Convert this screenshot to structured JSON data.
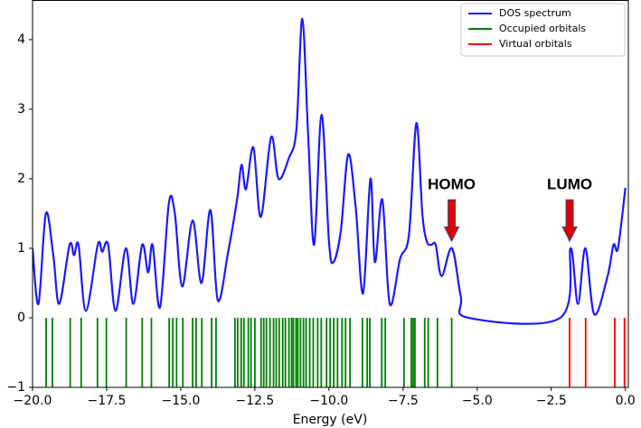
{
  "chart_data": {
    "type": "line",
    "x_label": "Energy (eV)",
    "xlim": [
      -20,
      0.1
    ],
    "ylim": [
      -1,
      4.57
    ],
    "xticks": [
      {
        "value": -20,
        "label": "−20.0"
      },
      {
        "value": -17.5,
        "label": "−17.5"
      },
      {
        "value": -15,
        "label": "−15.0"
      },
      {
        "value": -12.5,
        "label": "−12.5"
      },
      {
        "value": -10,
        "label": "−10.0"
      },
      {
        "value": -7.5,
        "label": "−7.5"
      },
      {
        "value": -5,
        "label": "−5.0"
      },
      {
        "value": -2.5,
        "label": "−2.5"
      },
      {
        "value": 0,
        "label": "0.0"
      }
    ],
    "yticks": [
      {
        "value": -1,
        "label": "−1"
      },
      0,
      1,
      2,
      3,
      4
    ],
    "legend": "upper right",
    "series": [
      {
        "name": "DOS spectrum",
        "color": "#1a1aff",
        "x": [
          -20.0,
          -19.8,
          -19.55,
          -19.3,
          -19.1,
          -18.75,
          -18.6,
          -18.45,
          -18.2,
          -17.8,
          -17.65,
          -17.45,
          -17.2,
          -16.85,
          -16.6,
          -16.3,
          -16.1,
          -15.95,
          -15.7,
          -15.4,
          -15.2,
          -14.95,
          -14.6,
          -14.3,
          -14.0,
          -13.75,
          -13.4,
          -13.1,
          -12.95,
          -12.8,
          -12.55,
          -12.3,
          -11.95,
          -11.7,
          -11.35,
          -11.1,
          -10.9,
          -10.7,
          -10.5,
          -10.25,
          -10.0,
          -9.85,
          -9.6,
          -9.35,
          -9.1,
          -8.85,
          -8.6,
          -8.45,
          -8.2,
          -7.95,
          -7.6,
          -7.3,
          -7.05,
          -6.85,
          -6.7,
          -6.55,
          -6.4,
          -6.2,
          -5.85,
          -5.55,
          -5.3,
          -2.2,
          -1.85,
          -1.6,
          -1.35,
          -1.05,
          -0.6,
          -0.4,
          -0.25,
          0.0
        ],
        "values": [
          1.0,
          0.2,
          1.5,
          0.9,
          0.2,
          1.05,
          0.9,
          1.05,
          0.1,
          1.05,
          0.95,
          1.05,
          0.1,
          1.0,
          0.2,
          1.05,
          0.65,
          1.05,
          0.15,
          1.65,
          1.5,
          0.45,
          1.4,
          0.5,
          1.55,
          0.25,
          0.95,
          1.7,
          2.2,
          1.85,
          2.45,
          1.45,
          2.6,
          2.0,
          2.3,
          2.7,
          4.3,
          2.6,
          1.05,
          2.92,
          1.1,
          0.8,
          1.25,
          2.35,
          1.6,
          0.35,
          2.0,
          0.8,
          1.7,
          0.2,
          0.85,
          1.2,
          2.8,
          1.5,
          1.1,
          1.05,
          1.05,
          0.6,
          1.0,
          0.3,
          0.0,
          0.0,
          1.0,
          0.2,
          1.0,
          0.05,
          0.6,
          1.05,
          1.0,
          1.87
        ]
      },
      {
        "name": "Occupied orbitals",
        "color": "#008000",
        "x": [
          -19.54,
          -19.33,
          -18.73,
          -18.36,
          -17.81,
          -17.51,
          -16.84,
          -16.3,
          -15.99,
          -15.39,
          -15.27,
          -15.14,
          -14.93,
          -14.6,
          -14.48,
          -14.29,
          -13.96,
          -13.81,
          -13.17,
          -13.08,
          -12.96,
          -12.87,
          -12.72,
          -12.63,
          -12.5,
          -12.29,
          -12.2,
          -12.11,
          -11.99,
          -11.87,
          -11.78,
          -11.68,
          -11.56,
          -11.47,
          -11.35,
          -11.26,
          -11.2,
          -11.11,
          -11.05,
          -10.96,
          -10.86,
          -10.77,
          -10.65,
          -10.53,
          -10.38,
          -10.26,
          -10.08,
          -9.96,
          -9.84,
          -9.71,
          -9.56,
          -9.44,
          -9.29,
          -8.87,
          -8.71,
          -8.62,
          -8.22,
          -8.1,
          -7.47,
          -7.22,
          -7.16,
          -7.1,
          -6.77,
          -6.65,
          -6.34,
          -5.86
        ]
      },
      {
        "name": "Virtual orbitals",
        "color": "#ff0000",
        "x": [
          -1.88,
          -1.34,
          -0.36,
          -0.03
        ]
      }
    ],
    "annotations": [
      {
        "text": "HOMO",
        "x": -5.86,
        "y": 1.1
      },
      {
        "text": "LUMO",
        "x": -1.88,
        "y": 1.1
      }
    ]
  }
}
